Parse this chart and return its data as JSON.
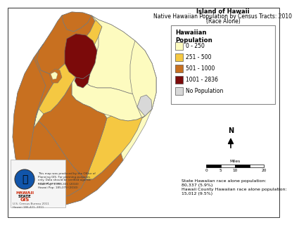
{
  "title_line1": "Island of Hawaii",
  "title_line2": "Native Hawaiian Population by Census Tracts: 2010",
  "title_line3": "(Race Alone)",
  "legend_title": "Hawaiian\nPopulation",
  "legend_items": [
    {
      "label": "0 - 250",
      "color": "#FDFBBF"
    },
    {
      "label": "251 - 500",
      "color": "#F5C842"
    },
    {
      "label": "501 - 1000",
      "color": "#C87020"
    },
    {
      "label": "1001 - 2836",
      "color": "#7B0A0A"
    },
    {
      "label": "No Population",
      "color": "#D8D8D8"
    }
  ],
  "stat_line1": "State Hawaiian race alone population:",
  "stat_line2": "80,337 (5.9%)",
  "stat_line3": "Hawaii County Hawaiian race alone population:",
  "stat_line4": "15,012 (9.5%)",
  "background_color": "#FFFFFF",
  "colors": {
    "light_yellow": "#FDFBBF",
    "light_orange": "#F5C842",
    "med_orange": "#C87020",
    "dark_red": "#7B0A0A",
    "light_gray": "#D8D8D8"
  }
}
